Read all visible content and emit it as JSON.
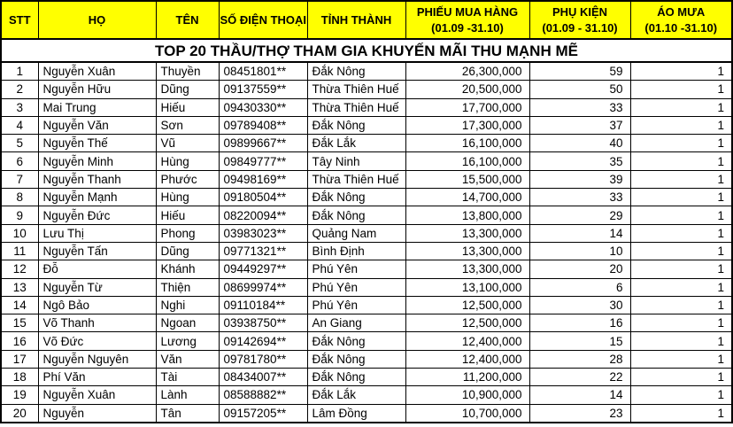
{
  "title": "TOP 20 THẦU/THỢ THAM GIA KHUYẾN MÃI THU MẠNH MẼ",
  "colors": {
    "header_bg": "#FFFF00",
    "border": "#000000",
    "text": "#000000",
    "row_bg": "#FFFFFF"
  },
  "table": {
    "columns": [
      {
        "key": "stt",
        "label": "STT",
        "sub": "",
        "align": "center"
      },
      {
        "key": "ho",
        "label": "HỌ",
        "sub": "",
        "align": "left"
      },
      {
        "key": "ten",
        "label": "TÊN",
        "sub": "",
        "align": "left"
      },
      {
        "key": "phone",
        "label": "SỐ ĐIỆN THOẠI",
        "sub": "",
        "align": "left"
      },
      {
        "key": "province",
        "label": "TỈNH THÀNH",
        "sub": "",
        "align": "left"
      },
      {
        "key": "voucher",
        "label": "PHIẾU MUA HÀNG",
        "sub": "(01.09 -31.10)",
        "align": "right"
      },
      {
        "key": "accessory",
        "label": "PHỤ KIỆN",
        "sub": "(01.09 - 31.10)",
        "align": "right"
      },
      {
        "key": "raincoat",
        "label": "ÁO MƯA",
        "sub": "(01.10 -31.10)",
        "align": "right"
      }
    ],
    "rows": [
      [
        "1",
        "Nguyễn Xuân",
        "Thuyền",
        "08451801**",
        "Đắk Nông",
        "26,300,000",
        "59",
        "1"
      ],
      [
        "2",
        "Nguyễn Hữu",
        "Dũng",
        "09137559**",
        "Thừa Thiên Huế",
        "20,500,000",
        "50",
        "1"
      ],
      [
        "3",
        "Mai Trung",
        "Hiếu",
        "09430330**",
        "Thừa Thiên Huế",
        "17,700,000",
        "33",
        "1"
      ],
      [
        "4",
        "Nguyễn Văn",
        "Sơn",
        "09789408**",
        "Đắk Nông",
        "17,300,000",
        "37",
        "1"
      ],
      [
        "5",
        "Nguyễn Thế",
        "Vũ",
        "09899667**",
        "Đắk Lắk",
        "16,100,000",
        "40",
        "1"
      ],
      [
        "6",
        "Nguyễn Minh",
        "Hùng",
        "09849777**",
        "Tây Ninh",
        "16,100,000",
        "35",
        "1"
      ],
      [
        "7",
        "Nguyễn Thanh",
        "Phước",
        "09498169**",
        "Thừa Thiên Huế",
        "15,500,000",
        "39",
        "1"
      ],
      [
        "8",
        "Nguyễn Mạnh",
        "Hùng",
        "09180504**",
        "Đắk Nông",
        "14,700,000",
        "33",
        "1"
      ],
      [
        "9",
        "Nguyễn Đức",
        "Hiếu",
        "08220094**",
        "Đắk Nông",
        "13,800,000",
        "29",
        "1"
      ],
      [
        "10",
        "Lưu Thị",
        "Phong",
        "03983023**",
        "Quảng Nam",
        "13,300,000",
        "14",
        "1"
      ],
      [
        "11",
        "Nguyễn Tấn",
        "Dũng",
        "09771321**",
        "Bình Định",
        "13,300,000",
        "10",
        "1"
      ],
      [
        "12",
        "Đỗ",
        "Khánh",
        "09449297**",
        "Phú Yên",
        "13,300,000",
        "20",
        "1"
      ],
      [
        "13",
        "Nguyễn Từ",
        "Thiện",
        "08699974**",
        "Phú Yên",
        "13,100,000",
        "6",
        "1"
      ],
      [
        "14",
        "Ngô Bảo",
        "Nghi",
        "09110184**",
        "Phú Yên",
        "12,500,000",
        "30",
        "1"
      ],
      [
        "15",
        "Võ Thanh",
        "Ngoan",
        "03938750**",
        "An Giang",
        "12,500,000",
        "16",
        "1"
      ],
      [
        "16",
        "Võ Đức",
        "Lương",
        "09142694**",
        "Đắk Nông",
        "12,400,000",
        "15",
        "1"
      ],
      [
        "17",
        "Nguyễn Nguyên",
        "Văn",
        "09781780**",
        "Đắk Nông",
        "12,400,000",
        "28",
        "1"
      ],
      [
        "18",
        "Phí Văn",
        "Tài",
        "08434007**",
        "Đắk Nông",
        "11,200,000",
        "22",
        "1"
      ],
      [
        "19",
        "Nguyễn Xuân",
        "Lành",
        "08588882**",
        "Đắk Lắk",
        "10,900,000",
        "14",
        "1"
      ],
      [
        "20",
        "Nguyễn",
        "Tân",
        "09157205**",
        "Lâm Đồng",
        "10,700,000",
        "23",
        "1"
      ]
    ]
  }
}
